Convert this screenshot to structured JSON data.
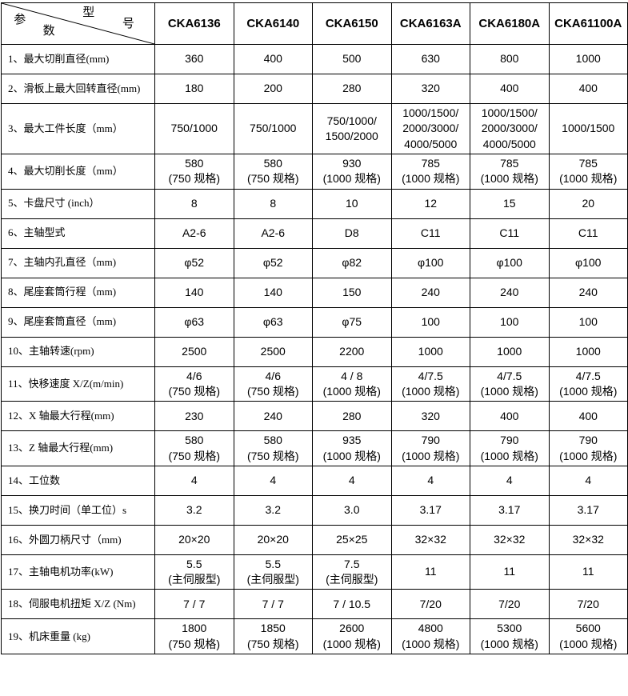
{
  "table": {
    "corner": {
      "model_char_1": "型",
      "model_char_2": "号",
      "param_char_1": "参",
      "param_char_2": "数"
    },
    "models": [
      "CKA6136",
      "CKA6140",
      "CKA6150",
      "CKA6163A",
      "CKA6180A",
      "CKA61100A"
    ],
    "rows": [
      {
        "label": "1、最大切削直径(mm)",
        "values": [
          "360",
          "400",
          "500",
          "630",
          "800",
          "1000"
        ]
      },
      {
        "label": "2、滑板上最大回转直径(mm)",
        "values": [
          "180",
          "200",
          "280",
          "320",
          "400",
          "400"
        ]
      },
      {
        "label": "3、最大工件长度（mm）",
        "values": [
          "750/1000",
          "750/1000",
          "750/1000/\n1500/2000",
          "1000/1500/\n2000/3000/\n4000/5000",
          "1000/1500/\n2000/3000/\n4000/5000",
          "1000/1500"
        ]
      },
      {
        "label": "4、最大切削长度（mm）",
        "values": [
          "580\n(750 规格)",
          "580\n(750 规格)",
          "930\n(1000 规格)",
          "785\n(1000 规格)",
          "785\n(1000 规格)",
          "785\n(1000 规格)"
        ]
      },
      {
        "label": "5、卡盘尺寸 (inch）",
        "values": [
          "8",
          "8",
          "10",
          "12",
          "15",
          "20"
        ]
      },
      {
        "label": "6、主轴型式",
        "values": [
          "A2-6",
          "A2-6",
          "D8",
          "C11",
          "C11",
          "C11"
        ]
      },
      {
        "label": "7、主轴内孔直径（mm)",
        "values": [
          "φ52",
          "φ52",
          "φ82",
          "φ100",
          "φ100",
          "φ100"
        ]
      },
      {
        "label": "8、尾座套筒行程（mm)",
        "values": [
          "140",
          "140",
          "150",
          "240",
          "240",
          "240"
        ]
      },
      {
        "label": "9、尾座套筒直径（mm)",
        "values": [
          "φ63",
          "φ63",
          "φ75",
          "100",
          "100",
          "100"
        ]
      },
      {
        "label": "10、主轴转速(rpm)",
        "values": [
          "2500",
          "2500",
          "2200",
          "1000",
          "1000",
          "1000"
        ]
      },
      {
        "label": "11、快移速度 X/Z(m/min)",
        "values": [
          "4/6\n(750 规格)",
          "4/6\n(750 规格)",
          "4 / 8\n(1000 规格)",
          "4/7.5\n(1000 规格)",
          "4/7.5\n(1000 规格)",
          "4/7.5\n(1000 规格)"
        ]
      },
      {
        "label": "12、X 轴最大行程(mm)",
        "values": [
          "230",
          "240",
          "280",
          "320",
          "400",
          "400"
        ]
      },
      {
        "label": "13、Z 轴最大行程(mm)",
        "values": [
          "580\n(750 规格)",
          "580\n(750 规格)",
          "935\n(1000 规格)",
          "790\n(1000 规格)",
          "790\n(1000 规格)",
          "790\n(1000 规格)"
        ]
      },
      {
        "label": "14、工位数",
        "values": [
          "4",
          "4",
          "4",
          "4",
          "4",
          "4"
        ]
      },
      {
        "label": "15、换刀时间（单工位）s",
        "values": [
          "3.2",
          "3.2",
          "3.0",
          "3.17",
          "3.17",
          "3.17"
        ]
      },
      {
        "label": "16、外圆刀柄尺寸（mm)",
        "values": [
          "20×20",
          "20×20",
          "25×25",
          "32×32",
          "32×32",
          "32×32"
        ]
      },
      {
        "label": "17、主轴电机功率(kW)",
        "values": [
          "5.5\n(主伺服型)",
          "5.5\n(主伺服型)",
          "7.5\n(主伺服型)",
          "11",
          "11",
          "11"
        ]
      },
      {
        "label": "18、伺服电机扭矩 X/Z (Nm)",
        "values": [
          "7 / 7",
          "7 / 7",
          "7 / 10.5",
          "7/20",
          "7/20",
          "7/20"
        ]
      },
      {
        "label": "19、机床重量 (kg)",
        "values": [
          "1800\n(750 规格)",
          "1850\n(750 规格)",
          "2600\n(1000 规格)",
          "4800\n(1000 规格)",
          "5300\n(1000 规格)",
          "5600\n(1000 规格)"
        ]
      }
    ]
  }
}
